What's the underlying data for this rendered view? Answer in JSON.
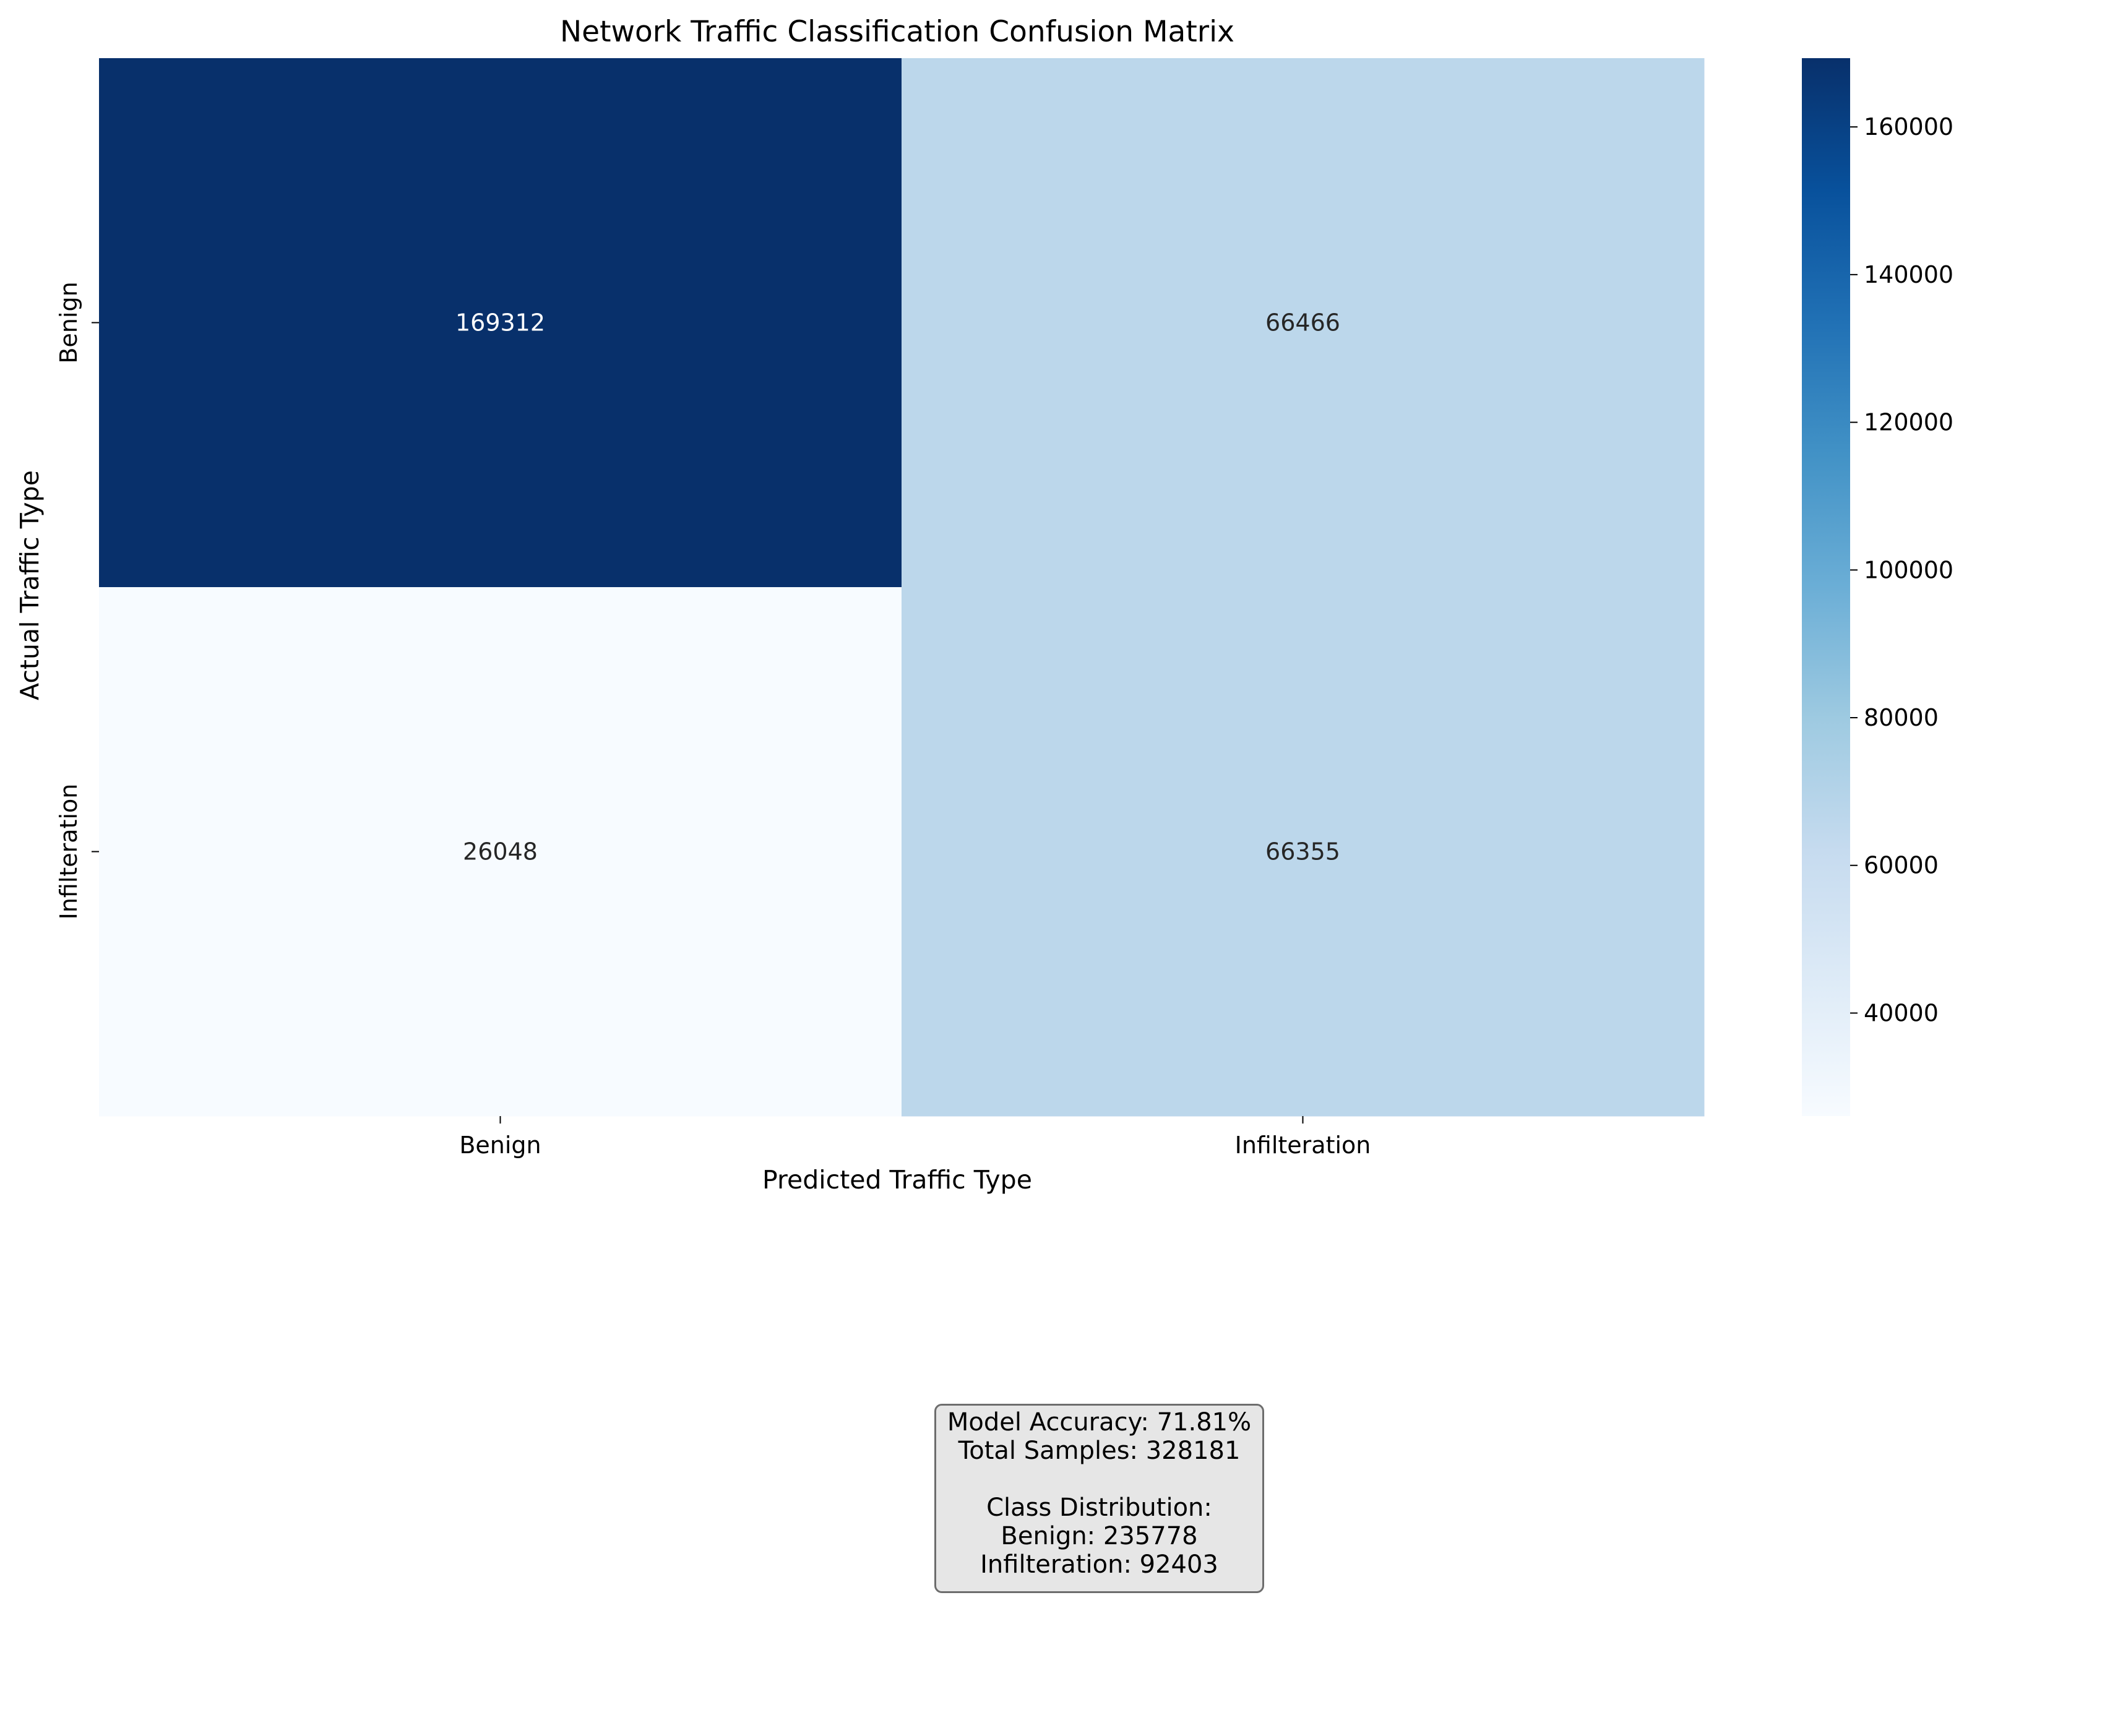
{
  "chart_data": {
    "type": "heatmap",
    "title": "Network Traffic Classification Confusion Matrix",
    "xlabel": "Predicted Traffic Type",
    "ylabel": "Actual Traffic Type",
    "x_categories": [
      "Benign",
      "Infilteration"
    ],
    "y_categories": [
      "Benign",
      "Infilteration"
    ],
    "values": [
      [
        169312,
        66466
      ],
      [
        26048,
        66355
      ]
    ],
    "cell_labels": [
      [
        "169312",
        "66466"
      ],
      [
        "26048",
        "66355"
      ]
    ],
    "colormap": "Blues",
    "colorbar": {
      "range": [
        26048,
        169312
      ],
      "ticks": [
        40000,
        60000,
        80000,
        100000,
        120000,
        140000,
        160000
      ],
      "tick_labels": [
        "40000",
        "60000",
        "80000",
        "100000",
        "120000",
        "140000",
        "160000"
      ]
    }
  },
  "stats": {
    "accuracy": "Model Accuracy: 71.81%",
    "total": "Total Samples: 328181",
    "dist_header": "Class Distribution:",
    "benign": "Benign: 235778",
    "infil": "Infilteration: 92403"
  },
  "colors": {
    "dark_text": "#262626",
    "light_text": "#ffffff"
  }
}
